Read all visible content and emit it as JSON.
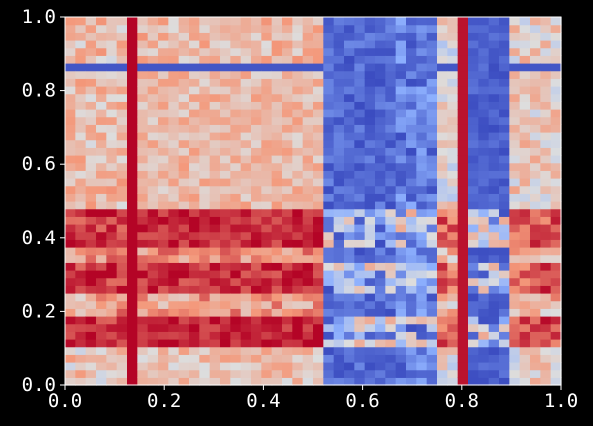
{
  "chart_data": {
    "type": "heatmap",
    "title": "",
    "xlabel": "",
    "ylabel": "",
    "xlim": [
      0.0,
      1.0
    ],
    "ylim": [
      0.0,
      1.0
    ],
    "x_ticks": [
      "0.0",
      "0.2",
      "0.4",
      "0.6",
      "0.8",
      "1.0"
    ],
    "y_ticks": [
      "0.0",
      "0.2",
      "0.4",
      "0.6",
      "0.8",
      "1.0"
    ],
    "colormap": "coolwarm",
    "grid": false,
    "grid_size": [
      48,
      48
    ],
    "column_bands": [
      {
        "x0": 0.0,
        "x1": 0.12,
        "v": 0.3,
        "sd": 0.28
      },
      {
        "x0": 0.12,
        "x1": 0.14,
        "v": 1.0,
        "sd": 0.02
      },
      {
        "x0": 0.14,
        "x1": 0.53,
        "v": 0.34,
        "sd": 0.18
      },
      {
        "x0": 0.53,
        "x1": 0.67,
        "v": -0.85,
        "sd": 0.15
      },
      {
        "x0": 0.67,
        "x1": 0.75,
        "v": -0.75,
        "sd": 0.25
      },
      {
        "x0": 0.75,
        "x1": 0.79,
        "v": -0.05,
        "sd": 0.3
      },
      {
        "x0": 0.79,
        "x1": 0.81,
        "v": 0.95,
        "sd": 0.05
      },
      {
        "x0": 0.81,
        "x1": 0.9,
        "v": -0.9,
        "sd": 0.1
      },
      {
        "x0": 0.9,
        "x1": 1.0,
        "v": 0.1,
        "sd": 0.28
      }
    ],
    "row_bands": [
      {
        "y0": 0.0,
        "y1": 0.11,
        "v": 0.05,
        "sd": 0.25
      },
      {
        "y0": 0.11,
        "y1": 0.19,
        "v": 0.95,
        "sd": 0.08
      },
      {
        "y0": 0.19,
        "y1": 0.25,
        "v": 0.3,
        "sd": 0.3
      },
      {
        "y0": 0.25,
        "y1": 0.33,
        "v": 0.9,
        "sd": 0.12
      },
      {
        "y0": 0.33,
        "y1": 0.38,
        "v": 0.4,
        "sd": 0.25
      },
      {
        "y0": 0.38,
        "y1": 0.47,
        "v": 0.92,
        "sd": 0.1
      },
      {
        "y0": 0.47,
        "y1": 0.85,
        "v": 0.1,
        "sd": 0.2
      },
      {
        "y0": 0.85,
        "y1": 0.88,
        "v": -0.95,
        "sd": 0.05
      },
      {
        "y0": 0.88,
        "y1": 1.0,
        "v": 0.1,
        "sd": 0.25
      }
    ]
  }
}
